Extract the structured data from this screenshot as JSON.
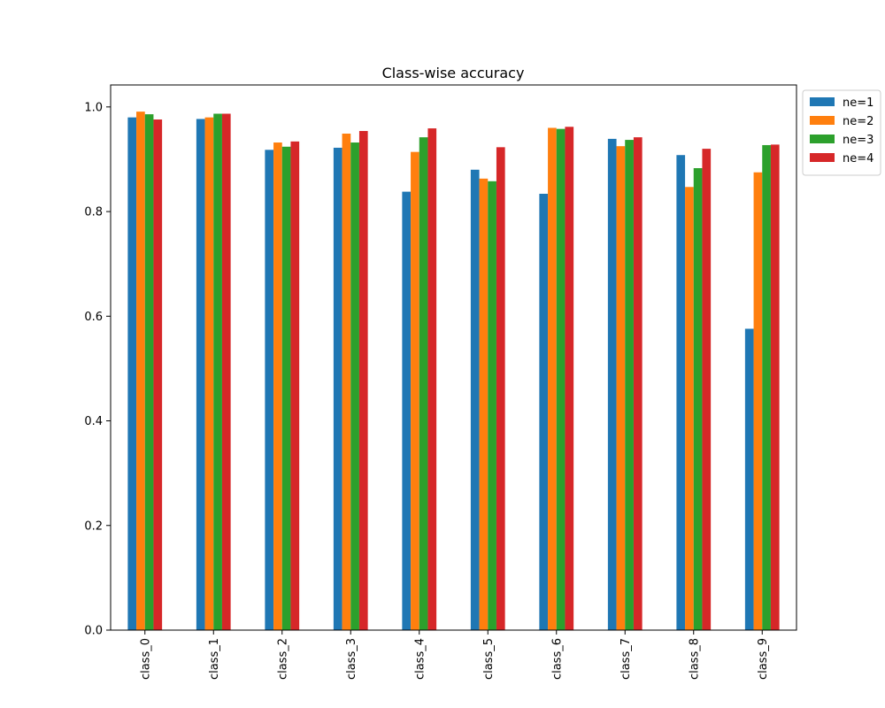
{
  "chart_data": {
    "type": "bar",
    "title": "Class-wise accuracy",
    "xlabel": "",
    "ylabel": "",
    "categories": [
      "class_0",
      "class_1",
      "class_2",
      "class_3",
      "class_4",
      "class_5",
      "class_6",
      "class_7",
      "class_8",
      "class_9"
    ],
    "series": [
      {
        "name": "ne=1",
        "color": "#1f77b4",
        "values": [
          0.98,
          0.977,
          0.918,
          0.922,
          0.838,
          0.88,
          0.834,
          0.939,
          0.908,
          0.576
        ]
      },
      {
        "name": "ne=2",
        "color": "#ff7f0e",
        "values": [
          0.991,
          0.98,
          0.932,
          0.949,
          0.914,
          0.863,
          0.96,
          0.925,
          0.847,
          0.875
        ]
      },
      {
        "name": "ne=3",
        "color": "#2ca02c",
        "values": [
          0.986,
          0.987,
          0.924,
          0.932,
          0.942,
          0.858,
          0.958,
          0.937,
          0.883,
          0.927
        ]
      },
      {
        "name": "ne=4",
        "color": "#d62728",
        "values": [
          0.976,
          0.987,
          0.934,
          0.954,
          0.959,
          0.923,
          0.962,
          0.942,
          0.92,
          0.928
        ]
      }
    ],
    "yticks": [
      "0.0",
      "0.2",
      "0.4",
      "0.6",
      "0.8",
      "1.0"
    ],
    "ylim": [
      0,
      1.042
    ],
    "grid": false,
    "legend": "outside-top-right"
  }
}
